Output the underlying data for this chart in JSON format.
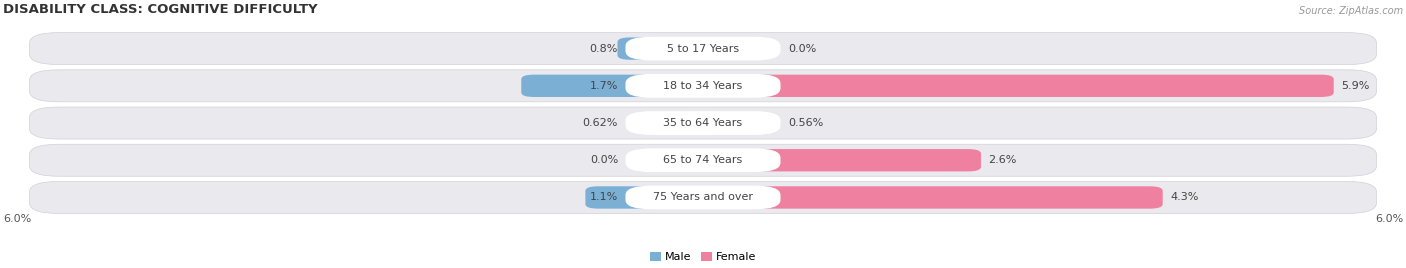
{
  "title": "DISABILITY CLASS: COGNITIVE DIFFICULTY",
  "source": "Source: ZipAtlas.com",
  "categories": [
    "5 to 17 Years",
    "18 to 34 Years",
    "35 to 64 Years",
    "65 to 74 Years",
    "75 Years and over"
  ],
  "male_values": [
    0.8,
    1.7,
    0.62,
    0.0,
    1.1
  ],
  "female_values": [
    0.0,
    5.9,
    0.56,
    2.6,
    4.3
  ],
  "male_labels": [
    "0.8%",
    "1.7%",
    "0.62%",
    "0.0%",
    "1.1%"
  ],
  "female_labels": [
    "0.0%",
    "5.9%",
    "0.56%",
    "2.6%",
    "4.3%"
  ],
  "male_color": "#7bafd4",
  "female_color": "#f080a0",
  "row_bg_color": "#e8e8ec",
  "max_val": 6.0,
  "axis_label_left": "6.0%",
  "axis_label_right": "6.0%",
  "title_fontsize": 9.5,
  "label_fontsize": 8,
  "category_fontsize": 8,
  "legend_male": "Male",
  "legend_female": "Female"
}
